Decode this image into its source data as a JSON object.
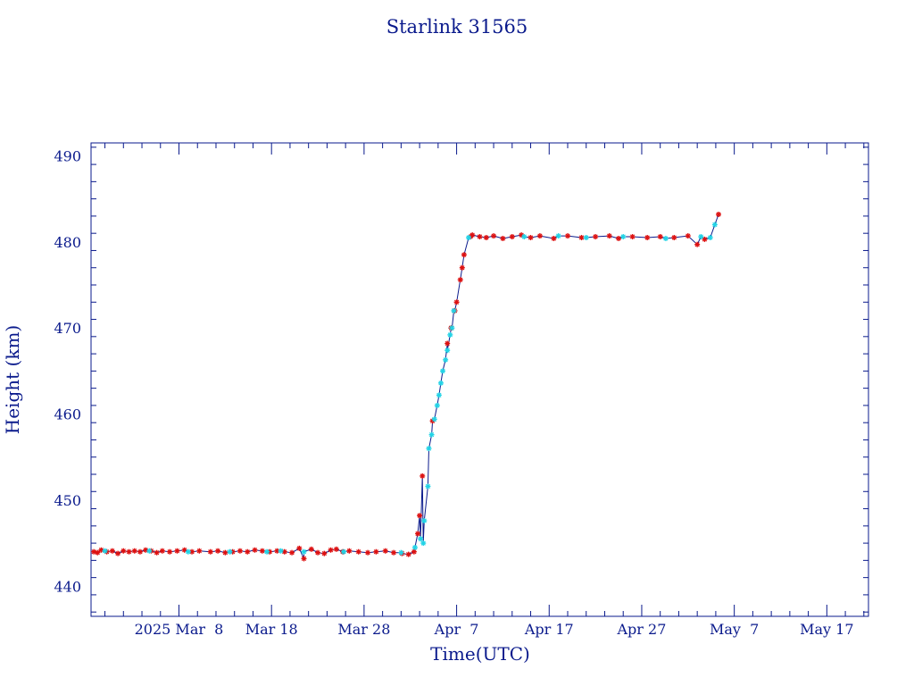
{
  "chart_data": {
    "type": "scatter",
    "title": "Starlink 31565",
    "xlabel": "Time(UTC)",
    "ylabel": "Height (km)",
    "x_unit": "days",
    "xlim": [
      -5.5,
      78.5
    ],
    "ylim": [
      436.5,
      491.5
    ],
    "x_ticks": [
      {
        "value": 4,
        "label": "2025 Mar  8"
      },
      {
        "value": 14,
        "label": "Mar 18"
      },
      {
        "value": 24,
        "label": "Mar 28"
      },
      {
        "value": 34,
        "label": "Apr  7"
      },
      {
        "value": 44,
        "label": "Apr 17"
      },
      {
        "value": 54,
        "label": "Apr 27"
      },
      {
        "value": 64,
        "label": "May  7"
      },
      {
        "value": 74,
        "label": "May 17"
      }
    ],
    "y_ticks": [
      440,
      450,
      460,
      470,
      480,
      490
    ],
    "line_color": "#0a1a8c",
    "marker_colors": {
      "red": "#dd1111",
      "cyan": "#22d3e6"
    },
    "series": [
      {
        "color": "red",
        "x": [
          -5.2,
          -4.8,
          -4.4,
          -3.8,
          -3.2,
          -2.6,
          -2.0,
          -1.4,
          -0.8,
          -0.2,
          0.4,
          1.0,
          1.6,
          2.2,
          3.0,
          3.8,
          4.6,
          5.4,
          6.2,
          7.4,
          8.2,
          9.0,
          9.8,
          10.6,
          11.4,
          12.2,
          13.0,
          13.8,
          14.6,
          15.4,
          16.2,
          17.0,
          17.5,
          18.3,
          19.0,
          19.7,
          20.4,
          21.0,
          21.7,
          22.4,
          23.4,
          24.4,
          25.3,
          26.3,
          27.2,
          28.1,
          28.8,
          29.4,
          29.8,
          30.0,
          30.3,
          31.4,
          33.0,
          33.4,
          33.8,
          34.0,
          34.4,
          34.6,
          34.8,
          35.5,
          35.7,
          36.5,
          37.2,
          38.0,
          39.0,
          40.0,
          41.0,
          42.0,
          43.0,
          44.5,
          46.0,
          47.5,
          49.0,
          50.5,
          51.5,
          53.0,
          54.6,
          56.0,
          57.5,
          59.0,
          60.0,
          60.8,
          62.3
        ],
        "y": [
          444.0,
          443.9,
          444.2,
          444.0,
          444.1,
          443.8,
          444.1,
          444.0,
          444.1,
          444.0,
          444.2,
          444.1,
          443.9,
          444.1,
          444.0,
          444.1,
          444.2,
          444.0,
          444.1,
          444.0,
          444.1,
          443.9,
          444.0,
          444.1,
          444.0,
          444.2,
          444.1,
          444.0,
          444.1,
          444.0,
          443.9,
          444.4,
          443.2,
          444.3,
          443.9,
          443.8,
          444.2,
          444.3,
          444.0,
          444.1,
          444.0,
          443.9,
          444.0,
          444.1,
          443.9,
          443.8,
          443.7,
          444.0,
          446.1,
          448.2,
          452.8,
          459.2,
          468.2,
          470.0,
          472.0,
          473.0,
          475.6,
          477.0,
          478.5,
          480.6,
          480.8,
          480.6,
          480.5,
          480.7,
          480.4,
          480.6,
          480.8,
          480.5,
          480.7,
          480.4,
          480.7,
          480.5,
          480.6,
          480.7,
          480.4,
          480.6,
          480.5,
          480.6,
          480.5,
          480.7,
          479.7,
          480.3,
          483.2
        ]
      },
      {
        "color": "cyan",
        "x": [
          -4.0,
          0.8,
          5.0,
          9.5,
          13.5,
          15.0,
          17.5,
          21.8,
          28.0,
          29.5,
          30.1,
          30.4,
          30.5,
          30.9,
          31.0,
          31.3,
          31.6,
          31.9,
          32.1,
          32.3,
          32.5,
          32.8,
          33.0,
          33.3,
          33.5,
          33.7,
          35.3,
          41.3,
          45.0,
          48.0,
          52.0,
          56.6,
          60.4,
          61.4,
          61.9
        ],
        "y": [
          444.1,
          444.1,
          444.0,
          444.0,
          444.0,
          444.1,
          444.0,
          444.0,
          443.9,
          444.5,
          445.5,
          445.0,
          447.6,
          451.6,
          456.0,
          457.6,
          459.4,
          461.0,
          462.2,
          463.6,
          465.0,
          466.3,
          467.4,
          469.2,
          470.0,
          472.0,
          480.5,
          480.6,
          480.7,
          480.5,
          480.6,
          480.4,
          480.6,
          480.5,
          482.0
        ]
      }
    ]
  }
}
